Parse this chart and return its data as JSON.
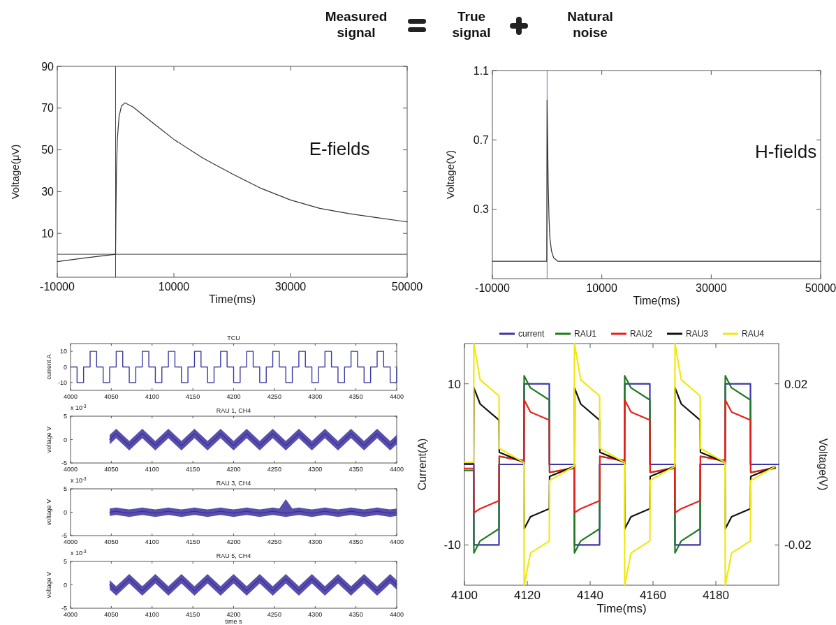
{
  "chart_data": [
    {
      "type": "other",
      "annotations": [
        "Measured signal",
        "True signal",
        "Natural noise"
      ]
    },
    {
      "type": "line",
      "xlabel": "Time(ms)",
      "ylabel": "Voltage(μV)",
      "xlim": [
        -10000,
        50000
      ],
      "xticks": [
        -10000,
        10000,
        30000,
        50000
      ],
      "ylim": [
        -11,
        90
      ],
      "yticks": [
        10,
        30,
        50,
        70,
        90
      ],
      "annotations": [
        "E-fields"
      ],
      "ref_lines": [
        {
          "axis": "x",
          "value": 0,
          "color": "#444444"
        },
        {
          "axis": "y",
          "value": 0,
          "color": "#444444"
        }
      ],
      "series": [
        {
          "color": "#333333",
          "x": [
            -10000,
            -5000,
            0,
            60,
            150,
            300,
            600,
            1000,
            1600,
            3000,
            5000,
            7500,
            10000,
            15000,
            20000,
            25000,
            30000,
            35000,
            40000,
            45000,
            50000
          ],
          "values": [
            -3.5,
            -1.7,
            0,
            20,
            40,
            55,
            66,
            71,
            72.5,
            70.5,
            66,
            60.5,
            55,
            46,
            38.5,
            31.5,
            26,
            22,
            19.5,
            17.5,
            15.5
          ]
        }
      ]
    },
    {
      "type": "line",
      "xlabel": "Time(ms)",
      "ylabel": "Voltage(V)",
      "xlim": [
        -10000,
        50000
      ],
      "xticks": [
        -10000,
        10000,
        30000,
        50000
      ],
      "ylim": [
        -0.1,
        1.1
      ],
      "yticks": [
        0.3,
        0.7,
        1.1
      ],
      "annotations": [
        "H-fields"
      ],
      "ref_lines": [
        {
          "axis": "x",
          "value": 0,
          "color": "#6a6ac0"
        }
      ],
      "series": [
        {
          "color": "#333333",
          "x": [
            -10000,
            -60,
            0,
            100,
            200,
            350,
            500,
            800,
            1200,
            2000,
            5000,
            50000
          ],
          "values": [
            0,
            0,
            0.93,
            0.7,
            0.45,
            0.25,
            0.14,
            0.06,
            0.02,
            0,
            0,
            0
          ]
        }
      ]
    },
    {
      "type": "step",
      "title": "TCU",
      "ylabel": "current A",
      "xlim": [
        4000,
        4400
      ],
      "xticks": [
        4000,
        4050,
        4100,
        4150,
        4200,
        4250,
        4300,
        4350,
        4400
      ],
      "ylim": [
        -15,
        15
      ],
      "yticks": [
        -10,
        0,
        10
      ],
      "series": [
        {
          "color": "#3b3ba0",
          "x": [
            4000,
            4008,
            4016,
            4024,
            4032,
            4040,
            4048,
            4056,
            4064,
            4072,
            4080,
            4088,
            4096,
            4104,
            4112,
            4120,
            4128,
            4136,
            4144,
            4152,
            4160,
            4168,
            4176,
            4184,
            4192,
            4200,
            4208,
            4216,
            4224,
            4232,
            4240,
            4248,
            4256,
            4264,
            4272,
            4280,
            4288,
            4296,
            4304,
            4312,
            4320,
            4328,
            4336,
            4344,
            4352,
            4360,
            4368,
            4376,
            4384,
            4392,
            4400
          ],
          "values": [
            0,
            -10,
            0,
            10,
            0,
            -10,
            0,
            10,
            0,
            -10,
            0,
            10,
            0,
            -10,
            0,
            10,
            0,
            -10,
            0,
            10,
            0,
            -10,
            0,
            10,
            0,
            -10,
            0,
            10,
            0,
            -10,
            0,
            10,
            0,
            -10,
            0,
            10,
            0,
            -10,
            0,
            10,
            0,
            -10,
            0,
            10,
            0,
            -10,
            0,
            10,
            0,
            -10,
            0
          ]
        }
      ]
    },
    {
      "type": "line",
      "title": "RAU 1, CH4",
      "ylabel": "voltage V",
      "xlim": [
        4000,
        4400
      ],
      "xticks": [
        4000,
        4050,
        4100,
        4150,
        4200,
        4250,
        4300,
        4350,
        4400
      ],
      "ylim": [
        -5,
        5
      ],
      "yticks": [
        -5,
        0,
        5
      ],
      "annotations": [
        "x 10$^{-3}$"
      ],
      "series": [
        {
          "color": "#3b2f9e",
          "x": [
            4048,
            4056,
            4064,
            4072,
            4080,
            4088,
            4096,
            4104,
            4112,
            4120,
            4128,
            4136,
            4144,
            4152,
            4160,
            4168,
            4176,
            4184,
            4192,
            4200,
            4208,
            4216,
            4224,
            4232,
            4240,
            4248,
            4256,
            4264,
            4272,
            4280,
            4288,
            4296,
            4304,
            4312,
            4320,
            4328,
            4336,
            4344,
            4352,
            4360,
            4368,
            4376,
            4384,
            4392,
            4400
          ],
          "values": [
            0,
            1.3,
            0,
            -1.3,
            0,
            1.3,
            0,
            -1.3,
            0,
            1.3,
            0,
            -1.3,
            0,
            1.3,
            0,
            -1.3,
            0,
            1.3,
            0,
            -1.3,
            0,
            1.3,
            0,
            -1.3,
            0,
            1.3,
            0,
            -1.3,
            0,
            1.3,
            0,
            -1.3,
            0,
            1.3,
            0,
            -1.3,
            0,
            1.3,
            0,
            -1.3,
            0,
            1.3,
            0,
            -1.3,
            0
          ],
          "lower": [
            -1,
            0.3,
            -1,
            -2.3,
            -1,
            0.3,
            -1,
            -2.3,
            -1,
            0.3,
            -1,
            -2.3,
            -1,
            0.3,
            -1,
            -2.3,
            -1,
            0.3,
            -1,
            -2.3,
            -1,
            0.3,
            -1,
            -2.3,
            -1,
            0.3,
            -1,
            -2.3,
            -1,
            0.3,
            -1,
            -2.3,
            -1,
            0.3,
            -1,
            -2.3,
            -1,
            0.3,
            -1,
            -2.3,
            -1,
            0.3,
            -1,
            -2.3,
            -1
          ],
          "upper": [
            1,
            2.3,
            1,
            -0.3,
            1,
            2.3,
            1,
            -0.3,
            1,
            2.3,
            1,
            -0.3,
            1,
            2.3,
            1,
            -0.3,
            1,
            2.3,
            1,
            -0.3,
            1,
            2.3,
            1,
            -0.3,
            1,
            2.3,
            1,
            -0.3,
            1,
            2.3,
            1,
            -0.3,
            1,
            2.3,
            1,
            -0.3,
            1,
            2.3,
            1,
            -0.3,
            1,
            2.3,
            1,
            -0.3,
            1
          ]
        }
      ]
    },
    {
      "type": "line",
      "title": "RAU 3, CH4",
      "ylabel": "voltage V",
      "xlim": [
        4000,
        4400
      ],
      "xticks": [
        4000,
        4050,
        4100,
        4150,
        4200,
        4250,
        4300,
        4350,
        4400
      ],
      "ylim": [
        -5,
        5
      ],
      "yticks": [
        -5,
        0,
        5
      ],
      "annotations": [
        "x 10$^{-3}$"
      ],
      "series": [
        {
          "color": "#3b2f9e",
          "x": [
            4048,
            4056,
            4064,
            4072,
            4080,
            4088,
            4096,
            4104,
            4112,
            4120,
            4128,
            4136,
            4144,
            4152,
            4160,
            4168,
            4176,
            4184,
            4192,
            4200,
            4208,
            4216,
            4224,
            4232,
            4240,
            4248,
            4256,
            4264,
            4272,
            4280,
            4288,
            4296,
            4304,
            4312,
            4320,
            4328,
            4336,
            4344,
            4352,
            4360,
            4368,
            4376,
            4384,
            4392,
            4400
          ],
          "values": [
            0,
            0.2,
            0,
            -0.2,
            0,
            0.2,
            0,
            -0.2,
            0,
            0.2,
            0,
            -0.2,
            0,
            0.2,
            0,
            -0.2,
            0,
            0.2,
            0,
            -0.2,
            0,
            0.2,
            0,
            -0.2,
            0,
            0.2,
            0,
            -0.2,
            0,
            0.2,
            0,
            -0.2,
            0,
            0.2,
            0,
            -0.2,
            0,
            0.2,
            0,
            -0.2,
            0,
            0.2,
            0,
            -0.2,
            0
          ],
          "lower": [
            -0.8,
            -0.6,
            -0.8,
            -1,
            -0.8,
            -0.6,
            -0.8,
            -1,
            -0.8,
            -0.6,
            -0.8,
            -1,
            -0.8,
            -0.6,
            -0.8,
            -1,
            -0.8,
            -0.6,
            -0.8,
            -1,
            -0.8,
            -0.6,
            -0.8,
            -1,
            -0.8,
            -0.6,
            -0.8,
            -1,
            -0.8,
            -0.6,
            -0.8,
            -1,
            -0.8,
            -0.6,
            -0.8,
            -1,
            -0.8,
            -0.6,
            -0.8,
            -1,
            -0.8,
            -0.6,
            -0.8,
            -1,
            -0.8
          ],
          "upper": [
            0.8,
            1,
            0.8,
            0.6,
            0.8,
            1,
            0.8,
            0.6,
            0.8,
            1,
            0.8,
            0.6,
            0.8,
            1,
            0.8,
            0.6,
            0.8,
            1,
            0.8,
            0.6,
            0.8,
            1,
            0.8,
            0.6,
            0.8,
            1,
            0.8,
            2.8,
            0.8,
            1,
            0.8,
            0.6,
            0.8,
            1,
            0.8,
            0.6,
            0.8,
            1,
            0.8,
            0.6,
            0.8,
            1,
            0.8,
            0.6,
            0.8
          ]
        }
      ]
    },
    {
      "type": "line",
      "title": "RAU 5, CH4",
      "xlabel": "time s",
      "ylabel": "voltage V",
      "xlim": [
        4000,
        4400
      ],
      "xticks": [
        4000,
        4050,
        4100,
        4150,
        4200,
        4250,
        4300,
        4350,
        4400
      ],
      "ylim": [
        -5,
        5
      ],
      "yticks": [
        -5,
        0,
        5
      ],
      "annotations": [
        "x 10$^{-3}$"
      ],
      "series": [
        {
          "color": "#3b2f9e",
          "x": [
            4048,
            4056,
            4064,
            4072,
            4080,
            4088,
            4096,
            4104,
            4112,
            4120,
            4128,
            4136,
            4144,
            4152,
            4160,
            4168,
            4176,
            4184,
            4192,
            4200,
            4208,
            4216,
            4224,
            4232,
            4240,
            4248,
            4256,
            4264,
            4272,
            4280,
            4288,
            4296,
            4304,
            4312,
            4320,
            4328,
            4336,
            4344,
            4352,
            4360,
            4368,
            4376,
            4384,
            4392,
            4400
          ],
          "values": [
            0,
            -1.3,
            0,
            1.3,
            0,
            -1.3,
            0,
            1.3,
            0,
            -1.3,
            0,
            1.3,
            0,
            -1.3,
            0,
            1.3,
            0,
            -1.3,
            0,
            1.3,
            0,
            -1.3,
            0,
            1.3,
            0,
            -1.3,
            0,
            1.3,
            0,
            -1.3,
            0,
            1.3,
            0,
            -1.3,
            0,
            1.3,
            0,
            -1.3,
            0,
            1.3,
            0,
            -1.3,
            0,
            1.3,
            0
          ],
          "lower": [
            -1,
            -2.3,
            -1,
            0.3,
            -1,
            -2.3,
            -1,
            0.3,
            -1,
            -2.3,
            -1,
            0.3,
            -1,
            -2.3,
            -1,
            0.3,
            -1,
            -2.3,
            -1,
            0.3,
            -1,
            -2.3,
            -1,
            0.3,
            -1,
            -2.3,
            -1,
            0.3,
            -1,
            -2.3,
            -1,
            0.3,
            -1,
            -2.3,
            -1,
            0.3,
            -1,
            -2.3,
            -1,
            0.3,
            -1,
            -2.3,
            -1,
            0.3,
            -1
          ],
          "upper": [
            1,
            -0.3,
            1,
            2.3,
            1,
            -0.3,
            1,
            2.3,
            1,
            -0.3,
            1,
            2.3,
            1,
            -0.3,
            1,
            2.3,
            1,
            -0.3,
            1,
            2.3,
            1,
            -0.3,
            1,
            2.3,
            1,
            -0.3,
            1,
            2.3,
            1,
            -0.3,
            1,
            2.3,
            1,
            -0.3,
            1,
            2.3,
            1,
            -0.3,
            1,
            2.3,
            1,
            -0.3,
            1,
            2.3,
            1
          ]
        }
      ]
    },
    {
      "type": "line",
      "xlabel": "Time(ms)",
      "ylabel": "Current(A)",
      "y2label": "Voltage(V)",
      "xlim": [
        4100,
        4200
      ],
      "xticks": [
        4100,
        4120,
        4140,
        4160,
        4180
      ],
      "ylim": [
        -15,
        15
      ],
      "yticks": [
        -10,
        10
      ],
      "y2lim": [
        -0.03,
        0.03
      ],
      "y2ticks": [
        -0.02,
        0.02
      ],
      "legend": "top",
      "x": [
        4100,
        4102.9,
        4103,
        4105,
        4111,
        4111.1,
        4118.9,
        4119,
        4121,
        4127,
        4127.1,
        4134.9,
        4135,
        4137,
        4143,
        4143.1,
        4150.9,
        4151,
        4153,
        4159,
        4159.1,
        4166.9,
        4167,
        4169,
        4175,
        4175.1,
        4182.9,
        4183,
        4185,
        4191,
        4191.1,
        4198.9
      ],
      "series": [
        {
          "name": "current",
          "type": "step",
          "color": "#3a35a8",
          "x": [
            4100,
            4103,
            4111,
            4119,
            4127,
            4135,
            4143,
            4151,
            4159,
            4167,
            4175,
            4183,
            4191,
            4200
          ],
          "values": [
            0,
            -10,
            0,
            10,
            0,
            -10,
            0,
            10,
            0,
            -10,
            0,
            10,
            0,
            0
          ]
        },
        {
          "name": "RAU1",
          "axis": "y2",
          "color": "#1e7a1e",
          "values": [
            -0.0015,
            -0.0015,
            -0.022,
            -0.019,
            -0.016,
            0.002,
            0.001,
            0.022,
            0.019,
            0.016,
            -0.002,
            -0.001,
            -0.022,
            -0.019,
            -0.016,
            0.002,
            0.001,
            0.022,
            0.019,
            0.016,
            -0.002,
            -0.001,
            -0.022,
            -0.019,
            -0.016,
            0.002,
            0.001,
            0.022,
            0.019,
            0.016,
            -0.002,
            -0.001
          ]
        },
        {
          "name": "RAU2",
          "axis": "y2",
          "color": "#e8201a",
          "values": [
            -0.001,
            -0.001,
            -0.012,
            -0.011,
            -0.009,
            0.002,
            0.0008,
            0.016,
            0.013,
            0.011,
            -0.002,
            -0.0008,
            -0.012,
            -0.011,
            -0.009,
            0.002,
            0.0008,
            0.016,
            0.013,
            0.011,
            -0.002,
            -0.0008,
            -0.012,
            -0.011,
            -0.009,
            0.002,
            0.0008,
            0.016,
            0.013,
            0.011,
            -0.002,
            -0.0008
          ]
        },
        {
          "name": "RAU3",
          "axis": "y2",
          "color": "#111111",
          "values": [
            0.0002,
            0.0002,
            0.019,
            0.015,
            0.011,
            0.003,
            0.0005,
            -0.016,
            -0.013,
            -0.011,
            -0.003,
            -0.0005,
            0.019,
            0.015,
            0.011,
            0.003,
            0.0005,
            -0.016,
            -0.013,
            -0.011,
            -0.003,
            -0.0005,
            0.019,
            0.015,
            0.011,
            0.003,
            0.0005,
            -0.016,
            -0.013,
            -0.011,
            -0.003,
            -0.0005
          ]
        },
        {
          "name": "RAU4",
          "axis": "y2",
          "color": "#f0e810",
          "values": [
            0.0005,
            0.0005,
            0.03,
            0.021,
            0.017,
            0.004,
            0.0005,
            -0.03,
            -0.022,
            -0.019,
            -0.004,
            -0.0005,
            0.03,
            0.021,
            0.017,
            0.004,
            0.0005,
            -0.03,
            -0.022,
            -0.019,
            -0.004,
            -0.0005,
            0.03,
            0.021,
            0.017,
            0.004,
            0.0005,
            -0.03,
            -0.022,
            -0.019,
            -0.004,
            -0.0005
          ]
        }
      ]
    }
  ]
}
